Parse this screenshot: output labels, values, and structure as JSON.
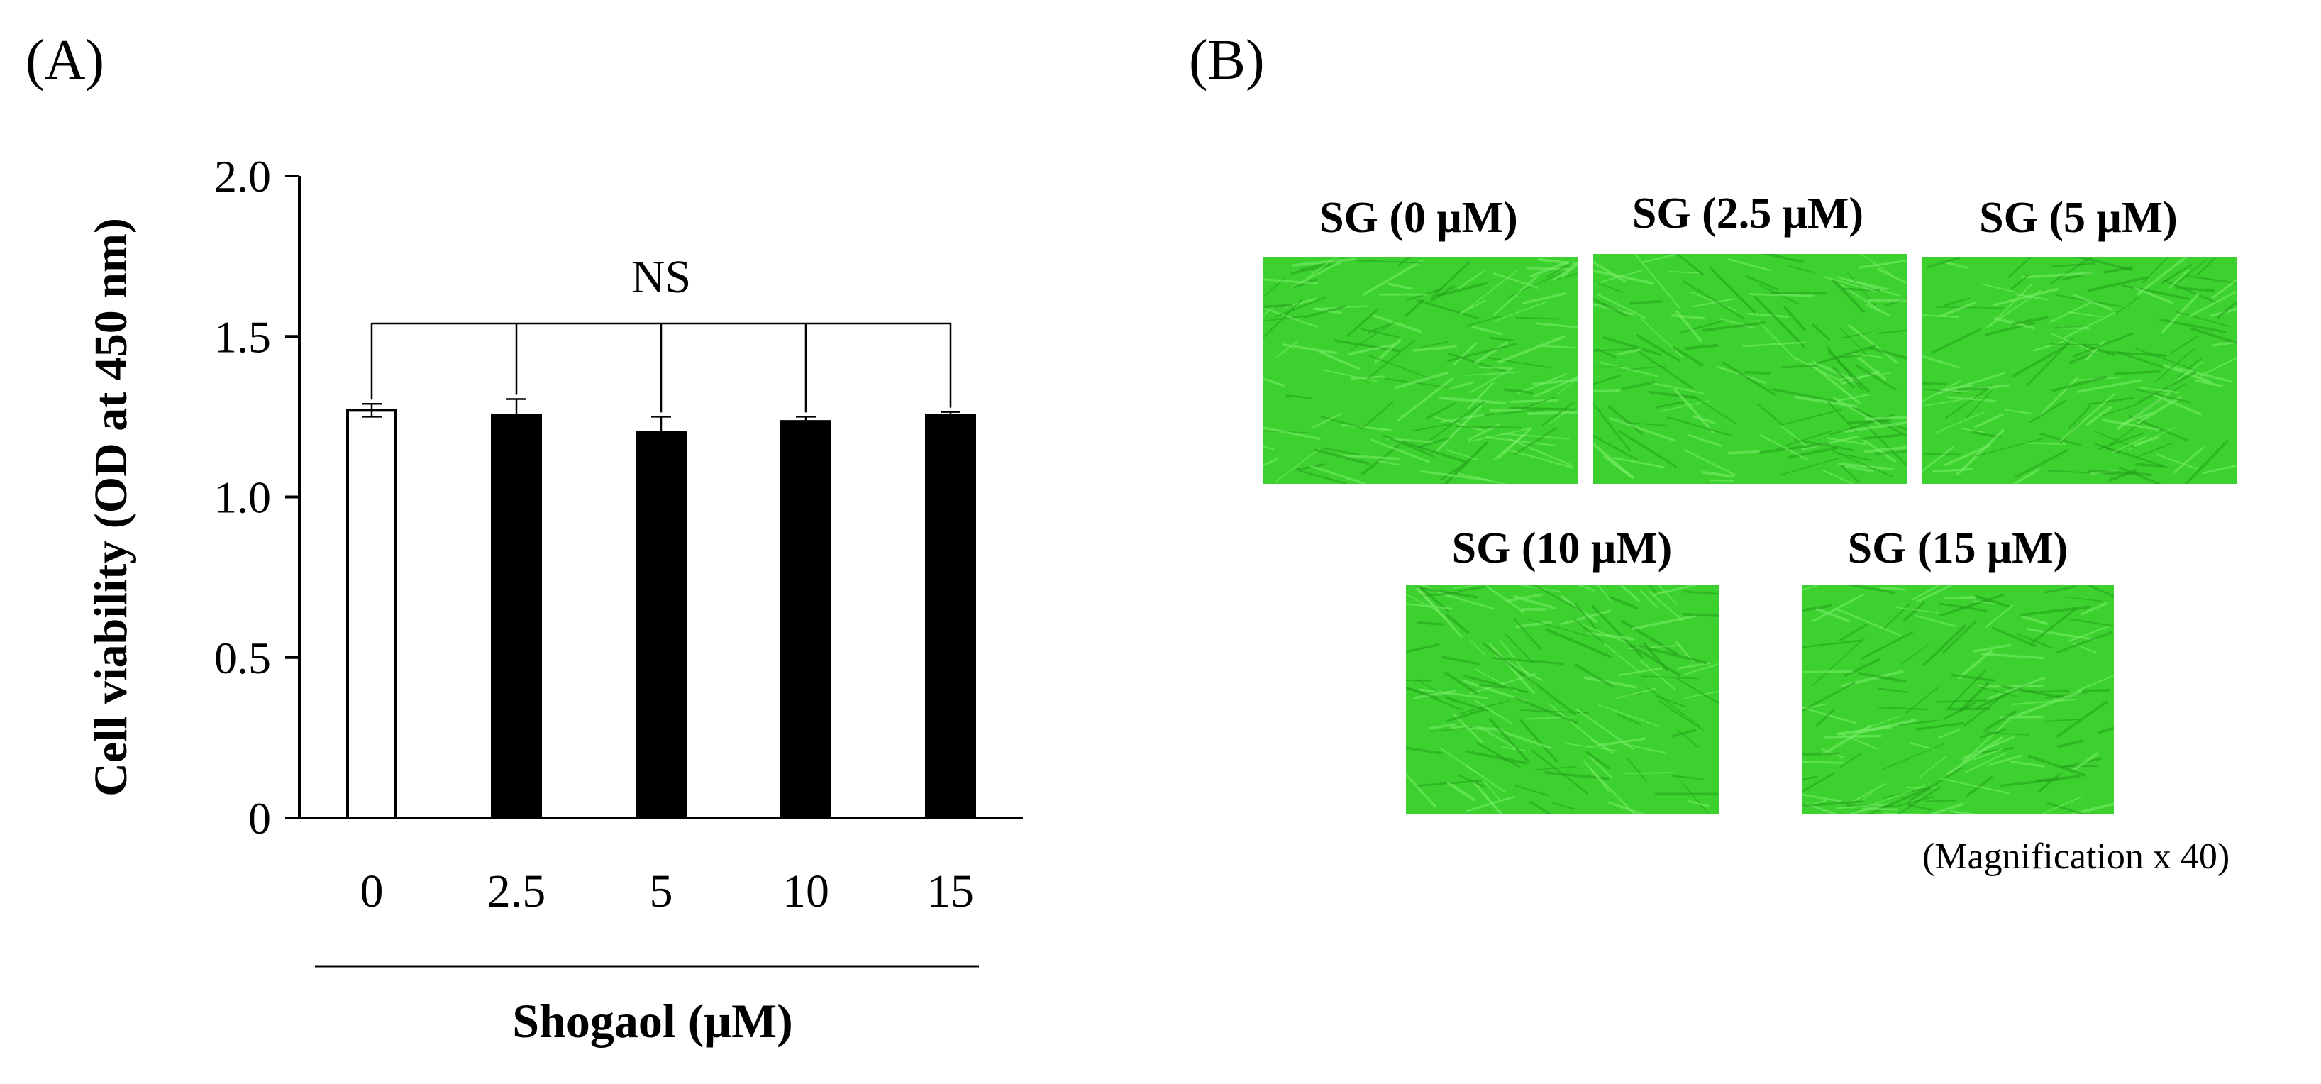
{
  "panel_a_label": "(A)",
  "panel_b_label": "(B)",
  "chart_data": {
    "type": "bar",
    "categories": [
      "0",
      "2.5",
      "5",
      "10",
      "15"
    ],
    "values": [
      1.27,
      1.255,
      1.2,
      1.235,
      1.255
    ],
    "errors": [
      0.02,
      0.05,
      0.05,
      0.015,
      0.01
    ],
    "bar_fills": [
      "#ffffff",
      "#000000",
      "#000000",
      "#000000",
      "#000000"
    ],
    "ylabel": "Cell viability (OD at 450 nm)",
    "xlabel": "Shogaol (μM)",
    "ylim": [
      0,
      2.0
    ],
    "yticks": [
      0,
      0.5,
      1.0,
      1.5,
      2.0
    ],
    "ytick_labels": [
      "0",
      "0.5",
      "1.0",
      "1.5",
      "2.0"
    ],
    "significance_label": "NS",
    "grid": false,
    "legend": "none"
  },
  "micrographs": {
    "color": "#3dd12f",
    "items": [
      {
        "label": "SG (0 μM)"
      },
      {
        "label": "SG (2.5 μM)"
      },
      {
        "label": "SG (5 μM)"
      },
      {
        "label": "SG (10 μM)"
      },
      {
        "label": "SG (15 μM)"
      }
    ],
    "caption": "(Magnification x 40)"
  }
}
